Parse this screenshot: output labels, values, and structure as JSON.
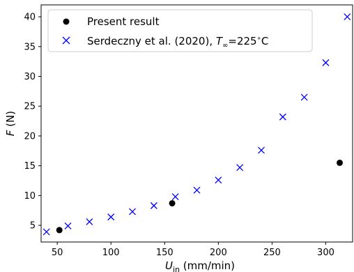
{
  "chart_data": {
    "type": "scatter",
    "xlabel": {
      "main": "U",
      "sub": "in",
      "rest": " (mm/min)"
    },
    "ylabel": {
      "main": "F",
      "rest": " (N)"
    },
    "xlim": [
      35,
      325
    ],
    "ylim": [
      2.2,
      42
    ],
    "xticks": [
      50,
      100,
      150,
      200,
      250,
      300
    ],
    "yticks": [
      5,
      10,
      15,
      20,
      25,
      30,
      35,
      40
    ],
    "legend_position": "upper-left",
    "series": [
      {
        "name": "Present result",
        "marker": "circle",
        "color": "#000000",
        "points": [
          [
            52,
            4.2
          ],
          [
            157,
            8.7
          ],
          [
            313,
            15.5
          ]
        ]
      },
      {
        "name": "Serdeczny et al. (2020), ",
        "name_math": {
          "var": "T",
          "sub": "∞",
          "rest": "=225",
          "deg": "∘",
          "unit": "C"
        },
        "marker": "x",
        "color": "#0000ff",
        "points": [
          [
            40,
            3.9
          ],
          [
            60,
            4.9
          ],
          [
            80,
            5.6
          ],
          [
            100,
            6.4
          ],
          [
            120,
            7.3
          ],
          [
            140,
            8.3
          ],
          [
            160,
            9.8
          ],
          [
            180,
            10.9
          ],
          [
            200,
            12.6
          ],
          [
            220,
            14.7
          ],
          [
            240,
            17.6
          ],
          [
            260,
            23.2
          ],
          [
            280,
            26.5
          ],
          [
            300,
            32.3
          ],
          [
            320,
            40.0
          ]
        ]
      }
    ]
  }
}
